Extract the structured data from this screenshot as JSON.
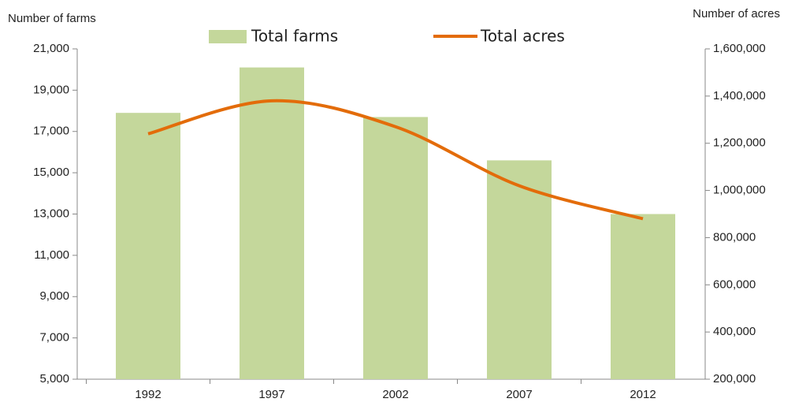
{
  "chart_data": {
    "type": "bar-line",
    "y_label": "Number of farms",
    "y2_label": "Number of acres",
    "categories": [
      "1992",
      "1997",
      "2002",
      "2007",
      "2012"
    ],
    "series": [
      {
        "name": "Total farms",
        "type": "bar",
        "color": "#c4d79b",
        "values": [
          17900,
          20100,
          17700,
          15600,
          13000
        ]
      },
      {
        "name": "Total acres",
        "type": "line",
        "axis": "y2",
        "color": "#e36c0a",
        "values": [
          1240000,
          1380000,
          1270000,
          1020000,
          880000
        ]
      }
    ],
    "ylim": [
      5000,
      21000
    ],
    "yticks": [
      {
        "value": 5000,
        "label": "5,000"
      },
      {
        "value": 7000,
        "label": "7,000"
      },
      {
        "value": 9000,
        "label": "9,000"
      },
      {
        "value": 11000,
        "label": "11,000"
      },
      {
        "value": 13000,
        "label": "13,000"
      },
      {
        "value": 15000,
        "label": "15,000"
      },
      {
        "value": 17000,
        "label": "17,000"
      },
      {
        "value": 19000,
        "label": "19,000"
      },
      {
        "value": 21000,
        "label": "21,000"
      }
    ],
    "y2lim": [
      200000,
      1600000
    ],
    "y2ticks": [
      {
        "value": 200000,
        "label": "200,000"
      },
      {
        "value": 400000,
        "label": "400,000"
      },
      {
        "value": 600000,
        "label": "600,000"
      },
      {
        "value": 800000,
        "label": "800,000"
      },
      {
        "value": 1000000,
        "label": "1,000,000"
      },
      {
        "value": 1200000,
        "label": "1,200,000"
      },
      {
        "value": 1400000,
        "label": "1,400,000"
      },
      {
        "value": 1600000,
        "label": "1,600,000"
      }
    ],
    "grid": false
  }
}
